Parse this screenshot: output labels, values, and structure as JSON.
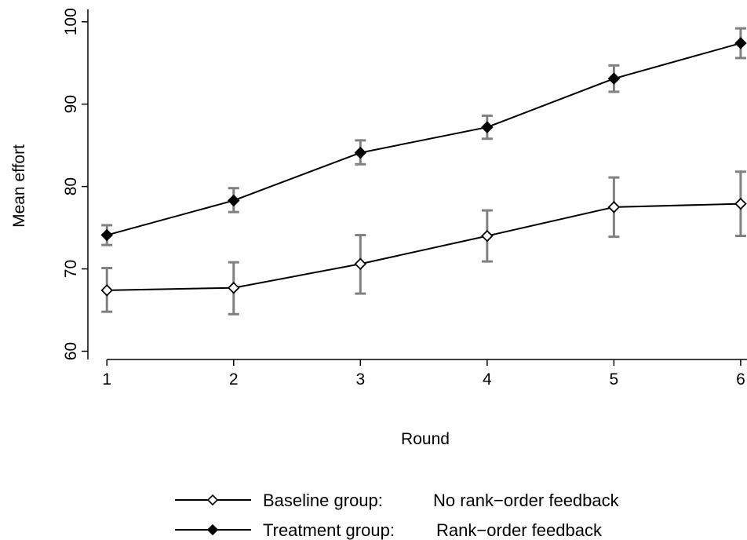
{
  "chart_data": {
    "type": "line",
    "title": "",
    "xlabel": "Round",
    "ylabel": "Mean effort",
    "x": [
      1,
      2,
      3,
      4,
      5,
      6
    ],
    "x_ticks": [
      "1",
      "2",
      "3",
      "4",
      "5",
      "6"
    ],
    "y_ticks": [
      "60",
      "70",
      "80",
      "90",
      "100"
    ],
    "ylim": [
      59,
      101.5
    ],
    "xlim": [
      0.85,
      6.05
    ],
    "grid": false,
    "legend_position": "bottom",
    "series": [
      {
        "key": "baseline",
        "group": "Baseline group:",
        "condition": "No rank−order feedback",
        "marker": "hollow-diamond",
        "values": [
          67.4,
          67.7,
          70.6,
          74.0,
          77.5,
          77.9
        ],
        "ci_low": [
          64.8,
          64.5,
          67.0,
          70.9,
          73.9,
          74.0
        ],
        "ci_high": [
          70.1,
          70.8,
          74.1,
          77.1,
          81.1,
          81.8
        ]
      },
      {
        "key": "treatment",
        "group": "Treatment group:",
        "condition": "Rank−order feedback",
        "marker": "filled-diamond",
        "values": [
          74.1,
          78.3,
          84.1,
          87.2,
          93.1,
          97.4
        ],
        "ci_low": [
          72.9,
          76.9,
          82.7,
          85.8,
          91.5,
          95.6
        ],
        "ci_high": [
          75.3,
          79.8,
          85.6,
          88.6,
          94.7,
          99.2
        ]
      }
    ],
    "colors": {
      "line": "#000000",
      "error_bar": "#808080",
      "axis": "#000000"
    }
  }
}
